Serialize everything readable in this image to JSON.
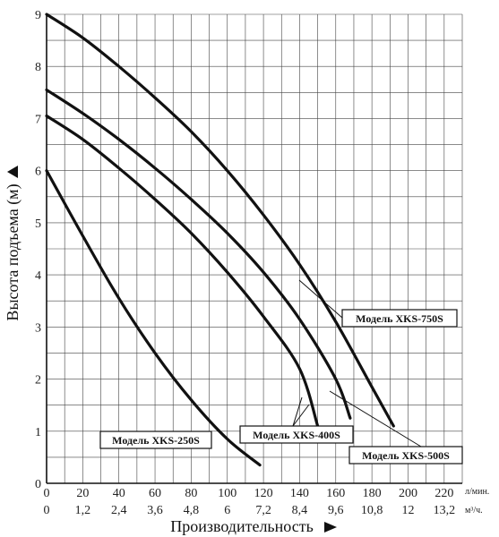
{
  "chart_data": {
    "type": "line",
    "title": "",
    "xlabel": "Производительность",
    "ylabel": "Высота подъема (м)",
    "x_unit_primary": "л/мин.",
    "x_unit_secondary": "м³/ч.",
    "xlim": [
      0,
      230
    ],
    "ylim": [
      0,
      9
    ],
    "x_ticks_primary": [
      "0",
      "20",
      "40",
      "60",
      "80",
      "100",
      "120",
      "140",
      "160",
      "180",
      "200",
      "220"
    ],
    "x_ticks_secondary": [
      "0",
      "1,2",
      "2,4",
      "3,6",
      "4,8",
      "6",
      "7,2",
      "8,4",
      "9,6",
      "10,8",
      "12",
      "13,2"
    ],
    "y_ticks": [
      "0",
      "1",
      "2",
      "3",
      "4",
      "5",
      "6",
      "7",
      "8",
      "9"
    ],
    "grid": true,
    "series": [
      {
        "name": "Модель XKS-250S",
        "x": [
          0,
          20,
          40,
          60,
          80,
          100,
          118
        ],
        "y": [
          6.0,
          4.75,
          3.55,
          2.5,
          1.6,
          0.85,
          0.35
        ]
      },
      {
        "name": "Модель XKS-400S",
        "x": [
          0,
          20,
          40,
          60,
          80,
          100,
          120,
          140,
          150
        ],
        "y": [
          7.05,
          6.6,
          6.05,
          5.45,
          4.8,
          4.05,
          3.2,
          2.2,
          1.1
        ]
      },
      {
        "name": "Модель XKS-500S",
        "x": [
          0,
          20,
          40,
          60,
          80,
          100,
          120,
          140,
          160,
          168
        ],
        "y": [
          7.55,
          7.1,
          6.6,
          6.05,
          5.45,
          4.8,
          4.05,
          3.15,
          2.0,
          1.25
        ]
      },
      {
        "name": "Модель XKS-750S",
        "x": [
          0,
          20,
          40,
          60,
          80,
          100,
          120,
          140,
          160,
          180,
          192
        ],
        "y": [
          9.0,
          8.55,
          8.0,
          7.4,
          6.75,
          6.0,
          5.15,
          4.2,
          3.1,
          1.85,
          1.1
        ]
      }
    ],
    "annotations": [
      {
        "text": "Модель XKS-250S",
        "series": 0
      },
      {
        "text": "Модель XKS-400S",
        "series": 1
      },
      {
        "text": "Модель XKS-500S",
        "series": 2
      },
      {
        "text": "Модель XKS-750S",
        "series": 3
      }
    ]
  }
}
